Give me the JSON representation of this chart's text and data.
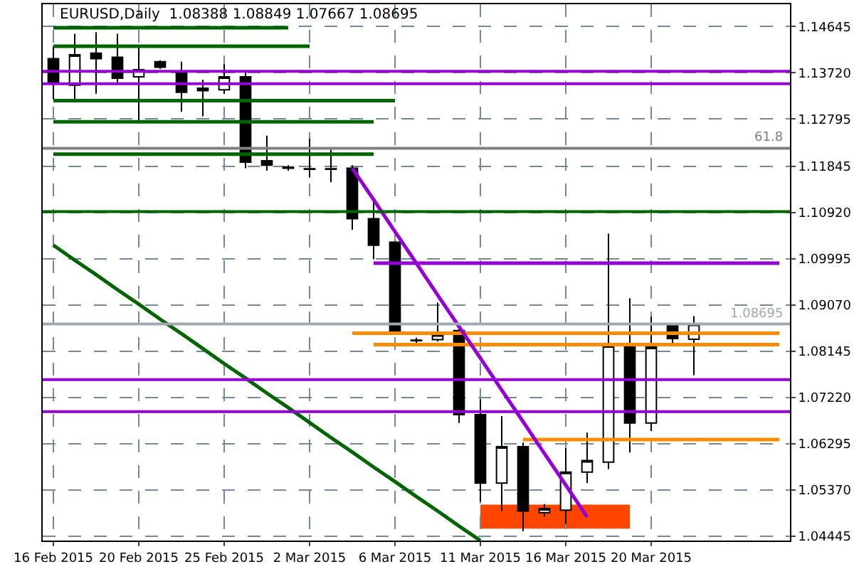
{
  "chart_data": {
    "type": "candlestick",
    "title": "EURUSD,Daily  1.08388 1.08849 1.07667 1.08695",
    "categories": [
      "16 Feb 2015",
      null,
      null,
      null,
      "20 Feb 2015",
      null,
      null,
      null,
      "25 Feb 2015",
      null,
      null,
      null,
      "2 Mar 2015",
      null,
      null,
      null,
      "6 Mar 2015",
      null,
      null,
      null,
      "11 Mar 2015",
      null,
      null,
      null,
      "16 Mar 2015",
      null,
      null,
      null,
      "20 Mar 2015",
      null,
      null,
      null,
      null,
      null,
      null
    ],
    "ohlc": [
      [
        1.14,
        1.1425,
        1.1319,
        1.135
      ],
      [
        1.1347,
        1.145,
        1.1319,
        1.1408
      ],
      [
        1.1411,
        1.1453,
        1.133,
        1.14
      ],
      [
        1.1403,
        1.145,
        1.1352,
        1.1361
      ],
      [
        1.1364,
        1.1425,
        1.1277,
        1.1378
      ],
      [
        1.1394,
        1.1397,
        1.138,
        1.1383
      ],
      [
        1.1375,
        1.1394,
        1.1294,
        1.1333
      ],
      [
        1.1336,
        1.1358,
        1.1285,
        1.1341
      ],
      [
        1.1338,
        1.1389,
        1.133,
        1.1364
      ],
      [
        1.1364,
        1.1372,
        1.1181,
        1.1193
      ],
      [
        1.1196,
        1.1246,
        1.1176,
        1.1187
      ],
      [
        1.1183,
        1.1187,
        1.1176,
        1.1181
      ],
      [
        1.118,
        1.124,
        1.1162,
        1.1179
      ],
      [
        1.118,
        1.1218,
        1.1153,
        1.1179
      ],
      [
        1.1181,
        1.1187,
        1.1058,
        1.108
      ],
      [
        1.108,
        1.1117,
        1.0999,
        1.1027
      ],
      [
        1.1033,
        1.1035,
        1.0848,
        1.0853
      ],
      [
        1.0837,
        1.0842,
        1.0828,
        1.0836
      ],
      [
        1.0838,
        1.0912,
        1.0834,
        1.0848
      ],
      [
        1.0856,
        1.0859,
        1.0671,
        1.0688
      ],
      [
        1.0688,
        1.0719,
        1.0514,
        1.0551
      ],
      [
        1.0551,
        1.0685,
        1.0495,
        1.0624
      ],
      [
        1.0624,
        1.0632,
        1.0455,
        1.0495
      ],
      [
        1.0492,
        1.0509,
        1.0484,
        1.05
      ],
      [
        1.0497,
        1.0621,
        1.0469,
        1.0573
      ],
      [
        1.0573,
        1.0652,
        1.0551,
        1.0596
      ],
      [
        1.0593,
        1.105,
        1.0579,
        1.0826
      ],
      [
        1.0826,
        1.0921,
        1.0612,
        1.0671
      ],
      [
        1.0671,
        1.0884,
        1.0655,
        1.0823
      ],
      [
        1.0868,
        1.0871,
        1.0831,
        1.084
      ],
      [
        1.08388,
        1.08849,
        1.07667,
        1.08695
      ],
      null,
      null,
      null,
      null
    ],
    "series": [
      {
        "type": "line",
        "color": "#006400",
        "values": [
          1.1462,
          1.1462,
          1.1462,
          1.1462,
          1.1462,
          1.1462,
          1.1462,
          1.1462,
          1.1462,
          1.1462,
          1.1462,
          1.1462,
          null,
          null,
          null,
          null,
          null,
          null,
          null,
          null,
          null,
          null,
          null,
          null,
          null,
          null,
          null,
          null,
          null,
          null,
          null,
          null,
          null,
          null,
          null
        ]
      },
      {
        "type": "line",
        "color": "#006400",
        "values": [
          1.1425,
          1.1425,
          1.1425,
          1.1425,
          1.1425,
          1.1425,
          1.1425,
          1.1425,
          1.1425,
          1.1425,
          1.1425,
          1.1425,
          1.1425,
          null,
          null,
          null,
          null,
          null,
          null,
          null,
          null,
          null,
          null,
          null,
          null,
          null,
          null,
          null,
          null,
          null,
          null,
          null,
          null,
          null,
          null
        ]
      },
      {
        "type": "line",
        "color": "#006400",
        "values": [
          1.1316,
          1.1316,
          1.1316,
          1.1316,
          1.1316,
          1.1316,
          1.1316,
          1.1316,
          1.1316,
          1.1316,
          1.1316,
          1.1316,
          1.1316,
          1.1316,
          1.1316,
          1.1316,
          1.1316,
          null,
          null,
          null,
          null,
          null,
          null,
          null,
          null,
          null,
          null,
          null,
          null,
          null,
          null,
          null,
          null,
          null,
          null
        ]
      },
      {
        "type": "line",
        "color": "#006400",
        "values": [
          1.1274,
          1.1274,
          1.1274,
          1.1274,
          1.1274,
          1.1274,
          1.1274,
          1.1274,
          1.1274,
          1.1274,
          1.1274,
          1.1274,
          1.1274,
          1.1274,
          1.1274,
          1.1274,
          null,
          null,
          null,
          null,
          null,
          null,
          null,
          null,
          null,
          null,
          null,
          null,
          null,
          null,
          null,
          null,
          null,
          null,
          null
        ]
      },
      {
        "type": "line",
        "color": "#006400",
        "values": [
          1.1209,
          1.1209,
          1.1209,
          1.1209,
          1.1209,
          1.1209,
          1.1209,
          1.1209,
          1.1209,
          1.1209,
          1.1209,
          1.1209,
          1.1209,
          1.1209,
          1.1209,
          1.1209,
          null,
          null,
          null,
          null,
          null,
          null,
          null,
          null,
          null,
          null,
          null,
          null,
          null,
          null,
          null,
          null,
          null,
          null,
          null
        ]
      },
      {
        "type": "line",
        "color": "#9400d3",
        "values": [
          null,
          null,
          null,
          null,
          null,
          null,
          null,
          null,
          null,
          null,
          null,
          null,
          null,
          null,
          null,
          1.0991,
          1.0991,
          1.0991,
          1.0991,
          1.0991,
          1.0991,
          1.0991,
          1.0991,
          1.0991,
          1.0991,
          1.0991,
          1.0991,
          1.0991,
          1.0991,
          1.0991,
          1.0991,
          1.0991,
          1.0991,
          1.0991,
          1.0991
        ]
      },
      {
        "type": "line",
        "color": "#ff8c00",
        "values": [
          null,
          null,
          null,
          null,
          null,
          null,
          null,
          null,
          null,
          null,
          null,
          null,
          null,
          null,
          1.0851,
          1.0851,
          1.0851,
          1.0851,
          1.0851,
          1.0851,
          1.0851,
          1.0851,
          1.0851,
          1.0851,
          1.0851,
          1.0851,
          1.0851,
          1.0851,
          1.0851,
          1.0851,
          1.0851,
          1.0851,
          1.0851,
          1.0851,
          1.0851
        ]
      },
      {
        "type": "line",
        "color": "#ff8c00",
        "values": [
          null,
          null,
          null,
          null,
          null,
          null,
          null,
          null,
          null,
          null,
          null,
          null,
          null,
          null,
          null,
          1.0828,
          1.0828,
          1.0828,
          1.0828,
          1.0828,
          1.0828,
          1.0828,
          1.0828,
          1.0828,
          1.0828,
          1.0828,
          1.0828,
          1.0828,
          1.0828,
          1.0828,
          1.0828,
          1.0828,
          1.0828,
          1.0828,
          1.0828
        ]
      },
      {
        "type": "line",
        "color": "#ff8c00",
        "values": [
          null,
          null,
          null,
          null,
          null,
          null,
          null,
          null,
          null,
          null,
          null,
          null,
          null,
          null,
          null,
          null,
          null,
          null,
          null,
          null,
          null,
          null,
          1.0638,
          1.0638,
          1.0638,
          1.0638,
          1.0638,
          1.0638,
          1.0638,
          1.0638,
          1.0638,
          1.0638,
          1.0638,
          1.0638,
          1.0638
        ]
      },
      {
        "type": "line",
        "color": "#006400",
        "values": [
          1.1027,
          1.0997,
          1.0968,
          1.0938,
          1.0909,
          1.0879,
          1.085,
          1.082,
          1.079,
          1.0761,
          1.0731,
          1.0702,
          1.0672,
          1.0642,
          1.0613,
          1.0583,
          1.0554,
          1.0524,
          1.0495,
          1.0465,
          1.0436,
          null,
          null,
          null,
          null,
          null,
          null,
          null,
          null,
          null,
          null,
          null,
          null,
          null,
          null
        ]
      },
      {
        "type": "line",
        "color": "#9400d3",
        "values": [
          null,
          null,
          null,
          null,
          null,
          null,
          null,
          null,
          null,
          null,
          null,
          null,
          null,
          null,
          1.1181,
          1.1118,
          1.1054,
          1.0991,
          1.0927,
          1.0864,
          1.0801,
          1.0737,
          1.0674,
          1.061,
          1.0547,
          1.0483,
          null,
          null,
          null,
          null,
          null,
          null,
          null,
          null,
          null
        ]
      }
    ],
    "ref_lines": [
      {
        "axis": "y",
        "value": 1.1375,
        "color": "#9400d3"
      },
      {
        "axis": "y",
        "value": 1.135,
        "color": "#9400d3"
      },
      {
        "axis": "y",
        "value": 1.0758,
        "color": "#9400d3"
      },
      {
        "axis": "y",
        "value": 1.0694,
        "color": "#9400d3"
      },
      {
        "axis": "y",
        "value": 1.1094,
        "color": "#006400"
      },
      {
        "axis": "y",
        "value": 1.1221,
        "color": "#808080"
      },
      {
        "axis": "y",
        "value": 1.08695,
        "label": "1.08695",
        "color": "#a0a8b0"
      }
    ],
    "ylim": [
      1.0436,
      1.1509
    ],
    "bands": [
      {
        "axis": "y",
        "from": 1.046,
        "to": 1.0508,
        "color": "#ff4500"
      }
    ],
    "annotations": [
      {
        "text": "61.8",
        "y": 1.1221
      }
    ],
    "yticks": [
      {
        "value": 1.04445,
        "label": "1.04445"
      },
      {
        "value": 1.0537,
        "label": "1.05370"
      },
      {
        "value": 1.06295,
        "label": "1.06295"
      },
      {
        "value": 1.0722,
        "label": "1.07220"
      },
      {
        "value": 1.08145,
        "label": "1.08145"
      },
      {
        "value": 1.0907,
        "label": "1.09070"
      },
      {
        "value": 1.09995,
        "label": "1.09995"
      },
      {
        "value": 1.1092,
        "label": "1.10920"
      },
      {
        "value": 1.11845,
        "label": "1.11845"
      },
      {
        "value": 1.12795,
        "label": "1.12795"
      },
      {
        "value": 1.1372,
        "label": "1.13720"
      },
      {
        "value": 1.14645,
        "label": "1.14645"
      }
    ],
    "grid": true
  }
}
